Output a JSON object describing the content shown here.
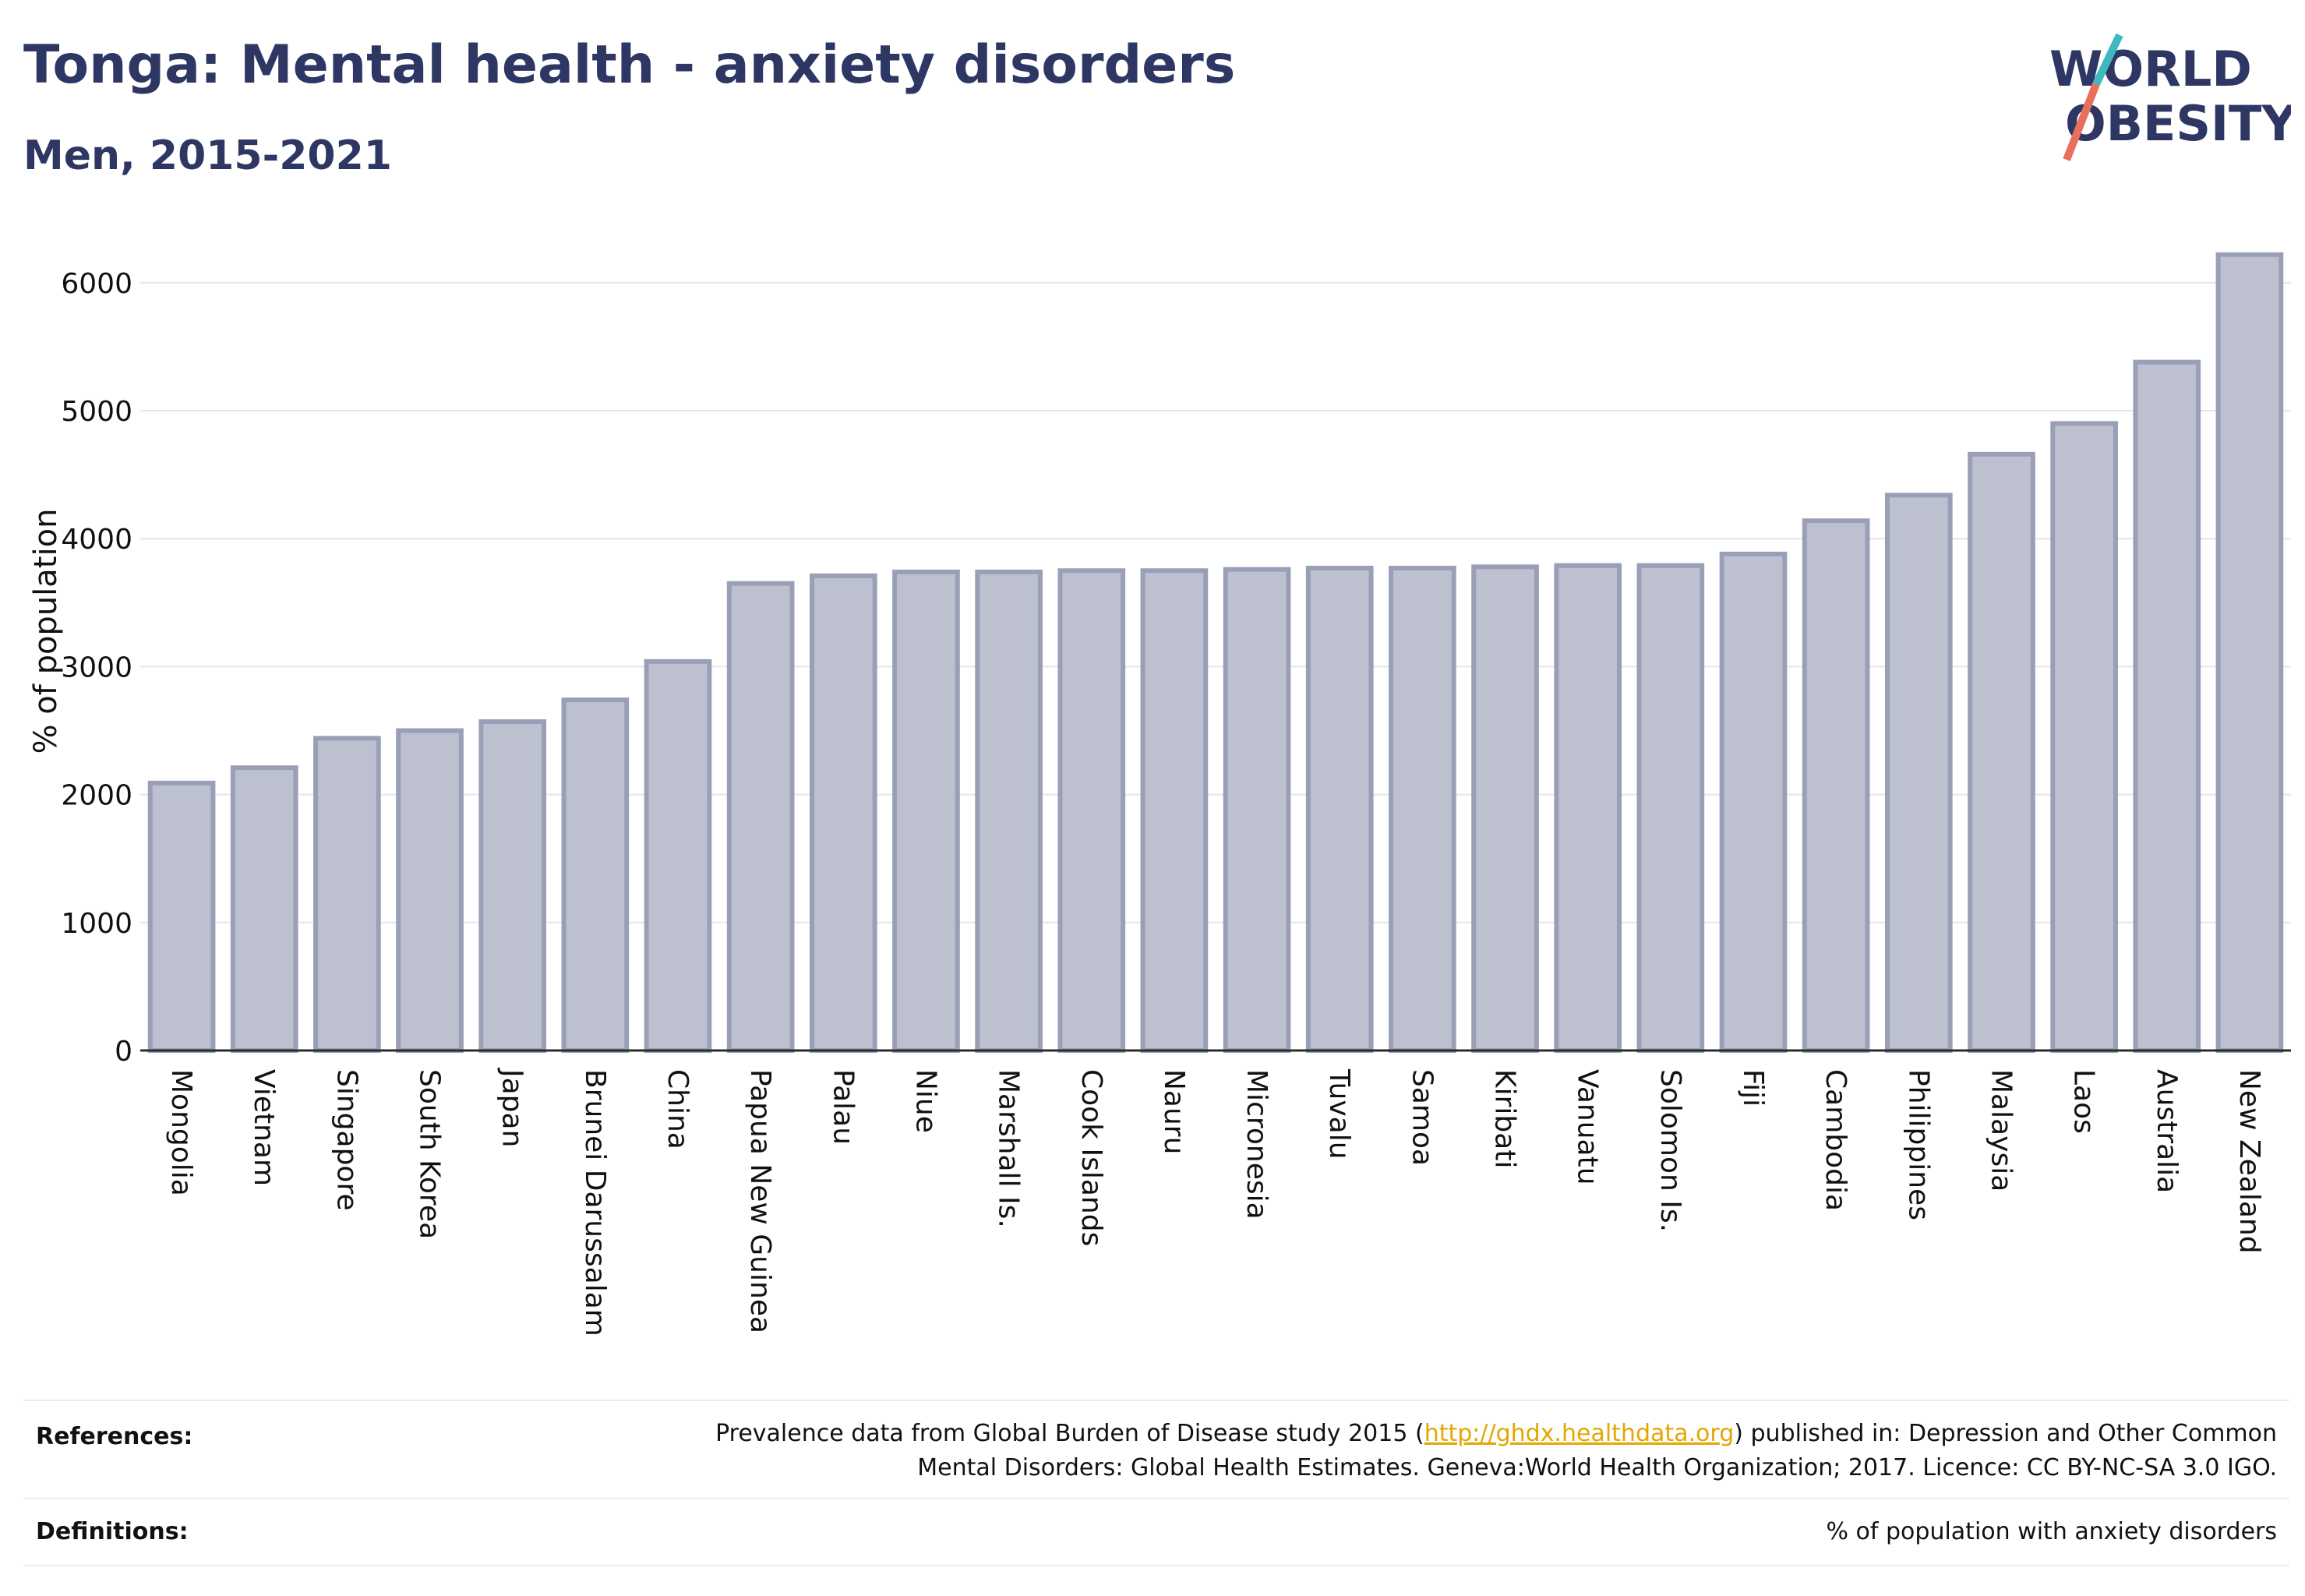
{
  "header": {
    "title": "Tonga: Mental health - anxiety disorders",
    "subtitle": "Men, 2015-2021"
  },
  "logo": {
    "line1": "WORLD",
    "line2": "OBESITY",
    "text_color": "#2e3763",
    "slash_colors": [
      "#3fb8c0",
      "#e8705a"
    ]
  },
  "colors": {
    "bar_fill": "#bdc0ce",
    "bar_stroke": "#9a9fb8",
    "grid": "#e6e6ea",
    "axis": "#2b2b2b"
  },
  "chart_data": {
    "type": "bar",
    "categories": [
      "Mongolia",
      "Vietnam",
      "Singapore",
      "South Korea",
      "Japan",
      "Brunei Darussalam",
      "China",
      "Papua New Guinea",
      "Palau",
      "Niue",
      "Marshall Is.",
      "Cook Islands",
      "Nauru",
      "Micronesia",
      "Tuvalu",
      "Samoa",
      "Kiribati",
      "Vanuatu",
      "Solomon Is.",
      "Fiji",
      "Cambodia",
      "Philippines",
      "Malaysia",
      "Laos",
      "Australia",
      "New Zealand"
    ],
    "values": [
      2090,
      2210,
      2440,
      2500,
      2570,
      2740,
      3040,
      3650,
      3710,
      3740,
      3740,
      3750,
      3750,
      3760,
      3770,
      3770,
      3780,
      3790,
      3790,
      3880,
      4140,
      4340,
      4660,
      4900,
      5380,
      6220
    ],
    "ylabel": "% of population",
    "xlabel": "",
    "ylim": [
      0,
      6200
    ],
    "yticks": [
      0,
      1000,
      2000,
      3000,
      4000,
      5000,
      6000
    ],
    "grid": true
  },
  "references": {
    "label": "References:",
    "text_before": "Prevalence data from Global Burden of Disease study 2015 (",
    "link": "http://ghdx.healthdata.org",
    "text_after": ") published in: Depression and Other Common Mental Disorders: Global Health Estimates. Geneva:World Health Organization; 2017. Licence: CC BY-NC-SA 3.0 IGO."
  },
  "definitions": {
    "label": "Definitions:",
    "text": "% of population with anxiety disorders"
  }
}
